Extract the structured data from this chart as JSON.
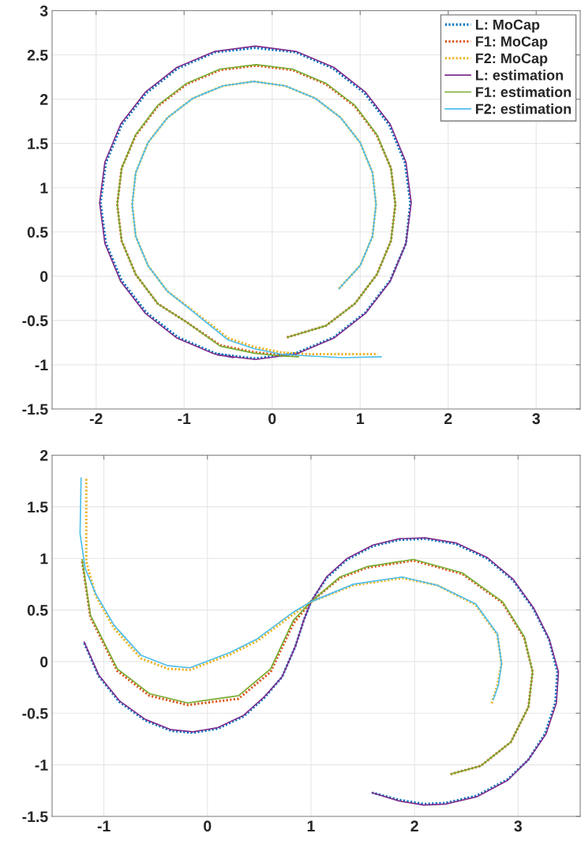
{
  "chart_data": [
    {
      "type": "line",
      "xlim": [
        -2.5,
        3.5
      ],
      "ylim": [
        -1.5,
        3
      ],
      "xticks": [
        -2,
        -1,
        0,
        1,
        2,
        3
      ],
      "yticks": [
        -1.5,
        -1,
        -0.5,
        0,
        0.5,
        1,
        1.5,
        2,
        2.5,
        3
      ],
      "grid": true,
      "legend": "top right",
      "marker": "none",
      "series": [
        {
          "name": "L: MoCap",
          "color": "#0072bd",
          "line_style": "dotted",
          "x": [
            -0.62,
            -0.19,
            0.27,
            0.7,
            1.06,
            1.34,
            1.52,
            1.57,
            1.51,
            1.33,
            1.05,
            0.69,
            0.27,
            -0.19,
            -0.65,
            -1.07,
            -1.43,
            -1.71,
            -1.89,
            -1.95,
            -1.89,
            -1.71,
            -1.43,
            -1.07,
            -0.65,
            -0.44
          ],
          "values": [
            -0.88,
            -0.93,
            -0.87,
            -0.69,
            -0.41,
            -0.05,
            0.37,
            0.83,
            1.28,
            1.71,
            2.07,
            2.35,
            2.53,
            2.58,
            2.53,
            2.35,
            2.07,
            1.71,
            1.28,
            0.83,
            0.38,
            -0.05,
            -0.41,
            -0.69,
            -0.87,
            -0.91
          ]
        },
        {
          "name": "F1: MoCap",
          "color": "#d95319",
          "line_style": "dotted",
          "x": [
            0.17,
            0.61,
            0.94,
            1.19,
            1.35,
            1.4,
            1.35,
            1.19,
            0.94,
            0.61,
            0.23,
            -0.18,
            -0.59,
            -0.97,
            -1.3,
            -1.55,
            -1.71,
            -1.76,
            -1.71,
            -1.55,
            -1.3,
            -0.97,
            -0.59,
            -0.2,
            0.1,
            0.3
          ],
          "values": [
            -0.69,
            -0.56,
            -0.31,
            0.02,
            0.4,
            0.81,
            1.22,
            1.59,
            1.92,
            2.17,
            2.33,
            2.38,
            2.33,
            2.17,
            1.92,
            1.59,
            1.22,
            0.81,
            0.4,
            0.02,
            -0.31,
            -0.52,
            -0.78,
            -0.86,
            -0.89,
            -0.9
          ]
        },
        {
          "name": "F2: MoCap",
          "color": "#edb120",
          "line_style": "dotted",
          "x": [
            0.76,
            1.0,
            1.14,
            1.18,
            1.14,
            1.0,
            0.78,
            0.49,
            0.15,
            -0.21,
            -0.56,
            -0.9,
            -1.19,
            -1.41,
            -1.55,
            -1.59,
            -1.55,
            -1.41,
            -1.19,
            -0.9,
            -0.5,
            -0.2,
            0.1,
            0.4,
            0.8,
            1.2
          ],
          "values": [
            -0.14,
            0.12,
            0.45,
            0.81,
            1.17,
            1.51,
            1.79,
            2.01,
            2.15,
            2.2,
            2.15,
            2.01,
            1.79,
            1.51,
            1.17,
            0.81,
            0.45,
            0.12,
            -0.17,
            -0.39,
            -0.7,
            -0.8,
            -0.86,
            -0.88,
            -0.88,
            -0.88
          ]
        },
        {
          "name": "L: estimation",
          "color": "#7e2f8e",
          "line_style": "solid",
          "x": [
            -0.62,
            -0.19,
            0.27,
            0.7,
            1.06,
            1.34,
            1.52,
            1.58,
            1.52,
            1.34,
            1.06,
            0.7,
            0.27,
            -0.19,
            -0.65,
            -1.08,
            -1.44,
            -1.72,
            -1.9,
            -1.96,
            -1.9,
            -1.72,
            -1.44,
            -1.08,
            -0.65,
            -0.44
          ],
          "values": [
            -0.89,
            -0.94,
            -0.88,
            -0.7,
            -0.42,
            -0.06,
            0.37,
            0.83,
            1.29,
            1.72,
            2.08,
            2.36,
            2.54,
            2.6,
            2.54,
            2.36,
            2.08,
            1.72,
            1.29,
            0.83,
            0.37,
            -0.06,
            -0.42,
            -0.7,
            -0.88,
            -0.92
          ]
        },
        {
          "name": "F1: estimation",
          "color": "#77ac30",
          "line_style": "solid",
          "x": [
            0.17,
            0.61,
            0.94,
            1.19,
            1.35,
            1.4,
            1.35,
            1.19,
            0.94,
            0.61,
            0.23,
            -0.18,
            -0.59,
            -0.97,
            -1.3,
            -1.55,
            -1.71,
            -1.76,
            -1.71,
            -1.55,
            -1.3,
            -0.97,
            -0.59,
            -0.2,
            0.1,
            0.3
          ],
          "values": [
            -0.69,
            -0.56,
            -0.31,
            0.02,
            0.4,
            0.81,
            1.22,
            1.6,
            1.93,
            2.18,
            2.34,
            2.39,
            2.34,
            2.18,
            1.93,
            1.6,
            1.22,
            0.81,
            0.4,
            0.02,
            -0.31,
            -0.52,
            -0.79,
            -0.87,
            -0.9,
            -0.91
          ]
        },
        {
          "name": "F2: estimation",
          "color": "#4dbeee",
          "line_style": "solid",
          "x": [
            0.76,
            1.0,
            1.14,
            1.18,
            1.14,
            1.0,
            0.78,
            0.49,
            0.15,
            -0.21,
            -0.56,
            -0.9,
            -1.19,
            -1.41,
            -1.55,
            -1.59,
            -1.55,
            -1.41,
            -1.19,
            -0.9,
            -0.5,
            -0.2,
            0.1,
            0.4,
            0.8,
            1.24
          ],
          "values": [
            -0.14,
            0.12,
            0.45,
            0.81,
            1.17,
            1.51,
            1.79,
            2.01,
            2.15,
            2.2,
            2.15,
            2.01,
            1.79,
            1.51,
            1.17,
            0.81,
            0.45,
            0.12,
            -0.17,
            -0.4,
            -0.72,
            -0.82,
            -0.88,
            -0.9,
            -0.92,
            -0.91
          ]
        }
      ]
    },
    {
      "type": "line",
      "xlim": [
        -1.5,
        3.6
      ],
      "ylim": [
        -1.5,
        2
      ],
      "xticks": [
        -1,
        0,
        1,
        2,
        3
      ],
      "yticks": [
        -1.5,
        -1,
        -0.5,
        0,
        0.5,
        1,
        1.5,
        2
      ],
      "grid": true,
      "marker": "none",
      "series": [
        {
          "color": "#0072bd",
          "line_style": "dotted",
          "x": [
            -1.19,
            -1.05,
            -0.85,
            -0.6,
            -0.35,
            -0.14,
            0.1,
            0.35,
            0.55,
            0.72,
            0.85,
            0.93,
            1.0,
            1.15,
            1.35,
            1.6,
            1.85,
            2.1,
            2.4,
            2.7,
            2.95,
            3.15,
            3.3,
            3.38,
            3.36,
            3.26,
            3.1,
            2.9,
            2.6,
            2.3,
            2.09,
            1.85,
            1.59
          ],
          "values": [
            0.18,
            -0.14,
            -0.39,
            -0.57,
            -0.67,
            -0.69,
            -0.65,
            -0.53,
            -0.35,
            -0.15,
            0.15,
            0.4,
            0.58,
            0.81,
            0.99,
            1.12,
            1.18,
            1.19,
            1.14,
            1.0,
            0.79,
            0.51,
            0.21,
            -0.1,
            -0.4,
            -0.7,
            -0.95,
            -1.14,
            -1.3,
            -1.37,
            -1.38,
            -1.34,
            -1.27
          ]
        },
        {
          "color": "#d95319",
          "line_style": "dotted",
          "x": [
            -1.21,
            -1.13,
            -0.87,
            -0.56,
            -0.19,
            0.3,
            0.61,
            0.83,
            1.0,
            1.28,
            1.54,
            1.99,
            2.46,
            2.85,
            3.06,
            3.14,
            3.1,
            2.93,
            2.64,
            2.35
          ],
          "values": [
            0.97,
            0.43,
            -0.09,
            -0.33,
            -0.42,
            -0.36,
            -0.1,
            0.37,
            0.58,
            0.81,
            0.91,
            0.98,
            0.85,
            0.57,
            0.23,
            -0.1,
            -0.44,
            -0.78,
            -1.01,
            -1.09
          ]
        },
        {
          "color": "#edb120",
          "line_style": "dotted",
          "x": [
            -1.17,
            -1.17,
            -1.17,
            -1.17,
            -1.08,
            -0.9,
            -0.64,
            -0.38,
            -0.17,
            0.22,
            0.48,
            0.83,
            1.0,
            1.41,
            1.88,
            2.22,
            2.59,
            2.8,
            2.84,
            2.8,
            2.74
          ],
          "values": [
            1.77,
            1.5,
            1.24,
            0.97,
            0.64,
            0.32,
            0.03,
            -0.07,
            -0.08,
            0.07,
            0.2,
            0.46,
            0.58,
            0.74,
            0.81,
            0.74,
            0.55,
            0.26,
            -0.02,
            -0.23,
            -0.42
          ]
        },
        {
          "color": "#7e2f8e",
          "line_style": "solid",
          "x": [
            -1.19,
            -1.05,
            -0.85,
            -0.6,
            -0.35,
            -0.14,
            0.1,
            0.35,
            0.55,
            0.72,
            0.85,
            0.93,
            1.0,
            1.15,
            1.35,
            1.6,
            1.85,
            2.1,
            2.4,
            2.7,
            2.95,
            3.15,
            3.3,
            3.39,
            3.37,
            3.27,
            3.1,
            2.9,
            2.6,
            2.3,
            2.09,
            1.85,
            1.59
          ],
          "values": [
            0.19,
            -0.13,
            -0.38,
            -0.56,
            -0.66,
            -0.68,
            -0.64,
            -0.52,
            -0.34,
            -0.15,
            0.15,
            0.4,
            0.58,
            0.82,
            1.0,
            1.13,
            1.19,
            1.2,
            1.15,
            1.01,
            0.8,
            0.52,
            0.22,
            -0.1,
            -0.4,
            -0.7,
            -0.95,
            -1.15,
            -1.31,
            -1.38,
            -1.39,
            -1.35,
            -1.27
          ]
        },
        {
          "color": "#77ac30",
          "line_style": "solid",
          "x": [
            -1.21,
            -1.13,
            -0.87,
            -0.56,
            -0.19,
            0.3,
            0.61,
            0.83,
            1.0,
            1.28,
            1.54,
            1.99,
            2.46,
            2.85,
            3.06,
            3.14,
            3.1,
            2.93,
            2.64,
            2.35
          ],
          "values": [
            0.99,
            0.45,
            -0.07,
            -0.31,
            -0.4,
            -0.33,
            -0.07,
            0.4,
            0.58,
            0.82,
            0.92,
            0.99,
            0.86,
            0.58,
            0.24,
            -0.1,
            -0.44,
            -0.78,
            -1.01,
            -1.09
          ]
        },
        {
          "color": "#4dbeee",
          "line_style": "solid",
          "x": [
            -1.22,
            -1.23,
            -1.18,
            -1.08,
            -0.9,
            -0.64,
            -0.38,
            -0.17,
            0.22,
            0.48,
            0.83,
            1.0,
            1.41,
            1.88,
            2.22,
            2.59,
            2.8,
            2.84,
            2.81,
            2.76
          ],
          "values": [
            1.78,
            1.24,
            0.9,
            0.66,
            0.35,
            0.06,
            -0.04,
            -0.06,
            0.09,
            0.22,
            0.48,
            0.58,
            0.75,
            0.82,
            0.74,
            0.56,
            0.27,
            -0.02,
            -0.23,
            -0.37
          ]
        }
      ]
    }
  ]
}
